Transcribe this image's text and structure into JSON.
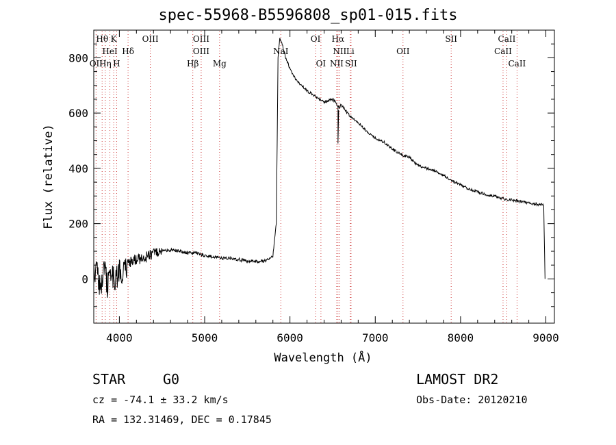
{
  "chart_data": {
    "type": "line",
    "title": "spec-55968-B5596808_sp01-015.fits",
    "xlabel": "Wavelength (Å)",
    "ylabel": "Flux (relative)",
    "xlim": [
      3700,
      9100
    ],
    "ylim": [
      -160,
      900
    ],
    "xticks": [
      4000,
      5000,
      6000,
      7000,
      8000,
      9000
    ],
    "yticks": [
      0,
      200,
      400,
      600,
      800
    ],
    "grid": false,
    "series": [
      {
        "x": [
          3700,
          3740,
          3780,
          3820,
          3860,
          3900,
          3950,
          4000,
          4050,
          4100,
          4200,
          4300,
          4400,
          4500,
          4600,
          4700,
          4800,
          4900,
          5000,
          5100,
          5200,
          5300,
          5400,
          5500,
          5600,
          5700,
          5800,
          5840,
          5860,
          5880,
          5900,
          5950,
          6000,
          6050,
          6100,
          6200,
          6300,
          6400,
          6500,
          6540,
          6560,
          6580,
          6600,
          6650,
          6700,
          6800,
          6900,
          7000,
          7100,
          7200,
          7300,
          7400,
          7500,
          7600,
          7700,
          7800,
          7900,
          8000,
          8100,
          8200,
          8300,
          8400,
          8500,
          8600,
          8700,
          8800,
          8900,
          8960,
          8975,
          8990
        ],
        "y": [
          40,
          20,
          -40,
          60,
          -30,
          30,
          -20,
          40,
          20,
          60,
          70,
          75,
          95,
          100,
          105,
          100,
          95,
          95,
          85,
          80,
          75,
          75,
          70,
          65,
          62,
          65,
          80,
          200,
          800,
          870,
          860,
          800,
          760,
          730,
          710,
          680,
          660,
          640,
          650,
          640,
          625,
          620,
          630,
          610,
          590,
          565,
          535,
          510,
          495,
          470,
          450,
          440,
          410,
          400,
          390,
          375,
          355,
          340,
          325,
          315,
          305,
          300,
          290,
          285,
          280,
          275,
          270,
          270,
          265,
          0
        ]
      }
    ],
    "line_markers": [
      {
        "label": "Hθ",
        "x": 3798,
        "row": 0
      },
      {
        "label": "K",
        "x": 3934,
        "row": 0
      },
      {
        "label": "OIII",
        "x": 4363,
        "row": 0
      },
      {
        "label": "OIII",
        "x": 4959,
        "row": 0
      },
      {
        "label": "OI",
        "x": 6300,
        "row": 0
      },
      {
        "label": "Hα",
        "x": 6563,
        "row": 0
      },
      {
        "label": "SII",
        "x": 7890,
        "row": 0
      },
      {
        "label": "CaII",
        "x": 8542,
        "row": 0
      },
      {
        "label": "HeI",
        "x": 3889,
        "row": 1
      },
      {
        "label": "Hδ",
        "x": 4102,
        "row": 1
      },
      {
        "label": "OIII",
        "x": 4959,
        "row": 1
      },
      {
        "label": "NaI",
        "x": 5893,
        "row": 1
      },
      {
        "label": "NII",
        "x": 6583,
        "row": 1
      },
      {
        "label": "Li",
        "x": 6707,
        "row": 1
      },
      {
        "label": "OII",
        "x": 7325,
        "row": 1
      },
      {
        "label": "CaII",
        "x": 8498,
        "row": 1
      },
      {
        "label": "OII",
        "x": 3727,
        "row": 2
      },
      {
        "label": "Hη",
        "x": 3835,
        "row": 2
      },
      {
        "label": "H",
        "x": 3968,
        "row": 2
      },
      {
        "label": "Hβ",
        "x": 4861,
        "row": 2
      },
      {
        "label": "Mg",
        "x": 5175,
        "row": 2
      },
      {
        "label": "OI",
        "x": 6363,
        "row": 2
      },
      {
        "label": "NII",
        "x": 6548,
        "row": 2
      },
      {
        "label": "SII",
        "x": 6716,
        "row": 2
      },
      {
        "label": "CaII",
        "x": 8662,
        "row": 2
      }
    ]
  },
  "info": {
    "class": "STAR",
    "subclass": "G0",
    "survey": "LAMOST DR2",
    "cz": "cz = -74.1 ± 33.2 km/s",
    "obs_date": "Obs-Date: 20120210",
    "coords": "RA = 132.31469, DEC =   0.17845"
  }
}
